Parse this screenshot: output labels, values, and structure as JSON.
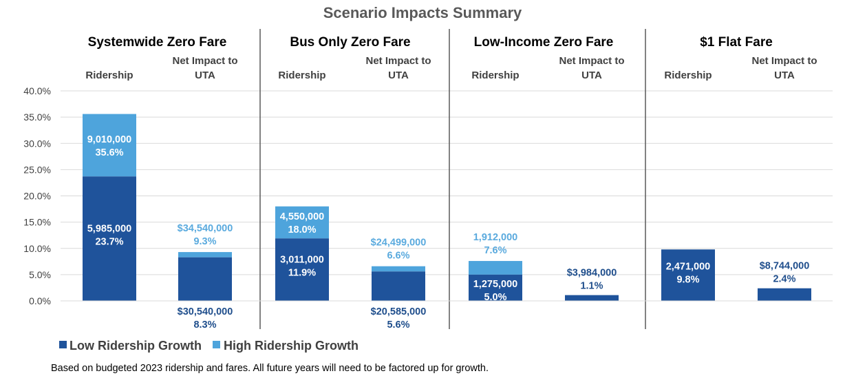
{
  "chart_data": {
    "type": "bar",
    "stacked": true,
    "title": "Scenario Impacts Summary",
    "ylim": [
      0,
      40
    ],
    "yticks": [
      "0.0%",
      "5.0%",
      "10.0%",
      "15.0%",
      "20.0%",
      "25.0%",
      "30.0%",
      "35.0%",
      "40.0%"
    ],
    "grid": true,
    "legend_placement": "bottom-left",
    "colors": {
      "low": "#1f539b",
      "high": "#4ea4dc",
      "low_label": "#1f4e8c",
      "high_label": "#5aaade"
    },
    "legend": [
      "Low Ridership Growth",
      "High Ridership Growth"
    ],
    "groups": [
      {
        "name": "Systemwide Zero Fare",
        "bars": [
          {
            "label": "Ridership",
            "low": 23.7,
            "high": 35.6,
            "low_text": [
              "5,985,000",
              "23.7%"
            ],
            "high_text": [
              "9,010,000",
              "35.6%"
            ]
          },
          {
            "label": "Net Impact to UTA",
            "low": 8.3,
            "high": 9.3,
            "low_text": [
              "$30,540,000",
              "8.3%"
            ],
            "high_text": [
              "$34,540,000",
              "9.3%"
            ]
          }
        ]
      },
      {
        "name": "Bus Only Zero Fare",
        "bars": [
          {
            "label": "Ridership",
            "low": 11.9,
            "high": 18.0,
            "low_text": [
              "3,011,000",
              "11.9%"
            ],
            "high_text": [
              "4,550,000",
              "18.0%"
            ]
          },
          {
            "label": "Net Impact to UTA",
            "low": 5.6,
            "high": 6.6,
            "low_text": [
              "$20,585,000",
              "5.6%"
            ],
            "high_text": [
              "$24,499,000",
              "6.6%"
            ]
          }
        ]
      },
      {
        "name": "Low-Income Zero Fare",
        "bars": [
          {
            "label": "Ridership",
            "low": 5.0,
            "high": 7.6,
            "low_text": [
              "1,275,000",
              "5.0%"
            ],
            "high_text": [
              "1,912,000",
              "7.6%"
            ]
          },
          {
            "label": "Net Impact to UTA",
            "low": 1.1,
            "high": null,
            "low_text": [
              "$3,984,000",
              "1.1%"
            ],
            "high_text": null
          }
        ]
      },
      {
        "name": "$1 Flat Fare",
        "bars": [
          {
            "label": "Ridership",
            "low": 9.8,
            "high": null,
            "low_text": [
              "2,471,000",
              "9.8%"
            ],
            "high_text": null
          },
          {
            "label": "Net Impact to UTA",
            "low": 2.4,
            "high": null,
            "low_text": [
              "$8,744,000",
              "2.4%"
            ],
            "high_text": null
          }
        ]
      }
    ],
    "footnote": "Based on budgeted 2023 ridership and fares.  All future years will need to be factored up for growth."
  }
}
